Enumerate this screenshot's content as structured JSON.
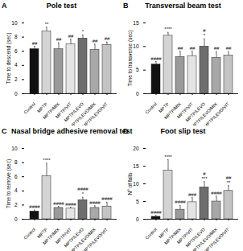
{
  "chart_data": [
    {
      "type": "bar",
      "panel": "A",
      "title": "Pole test",
      "y_label": "Time to descend (sec)",
      "categories": [
        "Control",
        "MPTP",
        "MPTP/MIX",
        "MPTP/VIT",
        "MPTP/LEVO",
        "MPTP/LEVO/MIX",
        "MPTP/LEVO/VIT"
      ],
      "values": [
        6.3,
        8.8,
        6.3,
        7.0,
        7.8,
        6.2,
        6.9
      ],
      "errors": [
        0.4,
        0.6,
        0.9,
        0.7,
        0.5,
        0.8,
        0.4
      ],
      "annotations": [
        [
          "##"
        ],
        [
          "**"
        ],
        [
          "##"
        ],
        [
          "##"
        ],
        [
          "*"
        ],
        [
          "##"
        ],
        [
          "##"
        ]
      ],
      "colors": [
        "#111111",
        "#d4d4d4",
        "#9a9a9a",
        "#e4e4e4",
        "#6e6e6e",
        "#a8a8a8",
        "#c4c4c4"
      ],
      "ylim": [
        0,
        10
      ],
      "yticks": [
        0,
        2,
        4,
        6,
        8,
        10
      ]
    },
    {
      "type": "bar",
      "panel": "B",
      "title": "Transversal beam test",
      "y_label": "Time to transverse (sec)",
      "categories": [
        "Control",
        "MPTP",
        "MPTP/MIX",
        "MPTP/VIT",
        "MPTP/LEVO",
        "MPTP/LEVO/MIX",
        "MPTP/LEVO/VIT"
      ],
      "values": [
        6.2,
        12.3,
        7.8,
        8.0,
        10.0,
        7.6,
        8.1
      ],
      "errors": [
        0.6,
        0.7,
        1.2,
        1.0,
        1.6,
        1.3,
        0.8
      ],
      "annotations": [
        [
          "####"
        ],
        [
          "****"
        ],
        [
          "##"
        ],
        [
          "##"
        ],
        [
          "#",
          "*"
        ],
        [
          "##"
        ],
        [
          "##"
        ]
      ],
      "colors": [
        "#111111",
        "#d4d4d4",
        "#9a9a9a",
        "#e4e4e4",
        "#6e6e6e",
        "#a8a8a8",
        "#c4c4c4"
      ],
      "ylim": [
        0,
        15
      ],
      "yticks": [
        0,
        5,
        10,
        15
      ]
    },
    {
      "type": "bar",
      "panel": "C",
      "title": "Nasal bridge adhesive removal test",
      "y_label": "Time to remove (sec)",
      "categories": [
        "Control",
        "MPTP",
        "MPTP/MIX",
        "MPTP/VIT",
        "MPTP/LEVO",
        "MPTP/LEVO/MIX",
        "MPTP/LEVO/VIT"
      ],
      "values": [
        1.1,
        6.1,
        1.6,
        1.5,
        2.7,
        1.6,
        1.8
      ],
      "errors": [
        0.2,
        1.8,
        0.2,
        0.2,
        0.4,
        0.3,
        0.6
      ],
      "annotations": [
        [
          "####"
        ],
        [
          "****"
        ],
        [
          "####"
        ],
        [
          "####"
        ],
        [
          "####",
          "*"
        ],
        [
          "####"
        ],
        [
          "####"
        ]
      ],
      "colors": [
        "#111111",
        "#d4d4d4",
        "#9a9a9a",
        "#e4e4e4",
        "#6e6e6e",
        "#a8a8a8",
        "#c4c4c4"
      ],
      "ylim": [
        0,
        10
      ],
      "yticks": [
        0,
        2,
        4,
        6,
        8,
        10
      ]
    },
    {
      "type": "bar",
      "panel": "D",
      "title": "Foot slip test",
      "y_label": "N° of falls",
      "categories": [
        "Control",
        "MPTP",
        "MPTP/MIX",
        "MPTP/VIT",
        "MPTP/LEVO",
        "MPTP/LEVO/MIX",
        "MPTP/LEVO/VIT"
      ],
      "values": [
        0.7,
        13.8,
        2.7,
        4.8,
        9.0,
        5.0,
        8.0
      ],
      "errors": [
        0.4,
        3.0,
        1.2,
        1.3,
        1.6,
        1.5,
        1.5
      ],
      "annotations": [
        [
          "####"
        ],
        [
          "****"
        ],
        [
          "####"
        ],
        [
          "###"
        ],
        [
          "#",
          "***"
        ],
        [
          "####"
        ],
        [
          "##",
          "**"
        ]
      ],
      "colors": [
        "#111111",
        "#d4d4d4",
        "#9a9a9a",
        "#e4e4e4",
        "#6e6e6e",
        "#a8a8a8",
        "#c4c4c4"
      ],
      "ylim": [
        0,
        20
      ],
      "yticks": [
        0,
        5,
        10,
        15,
        20
      ]
    }
  ]
}
